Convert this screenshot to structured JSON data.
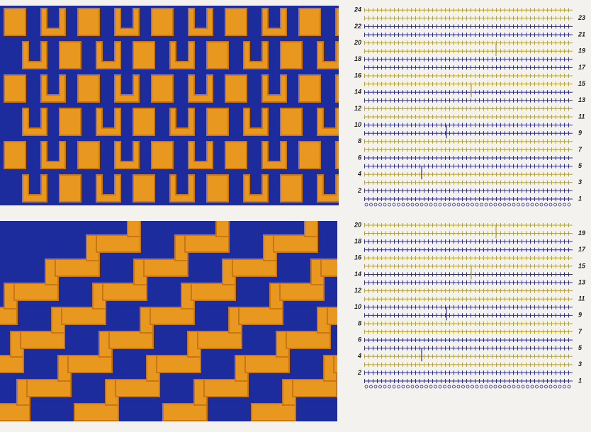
{
  "charts": [
    {
      "left_labels": [
        24,
        22,
        20,
        18,
        16,
        14,
        12,
        10,
        8,
        6,
        4,
        2
      ],
      "right_labels": [
        23,
        21,
        19,
        17,
        15,
        13,
        11,
        9,
        7,
        5,
        3,
        1
      ]
    },
    {
      "left_labels": [
        20,
        18,
        16,
        14,
        12,
        10,
        8,
        6,
        4,
        2
      ],
      "right_labels": [
        19,
        17,
        15,
        13,
        11,
        9,
        7,
        5,
        3,
        1
      ]
    }
  ]
}
